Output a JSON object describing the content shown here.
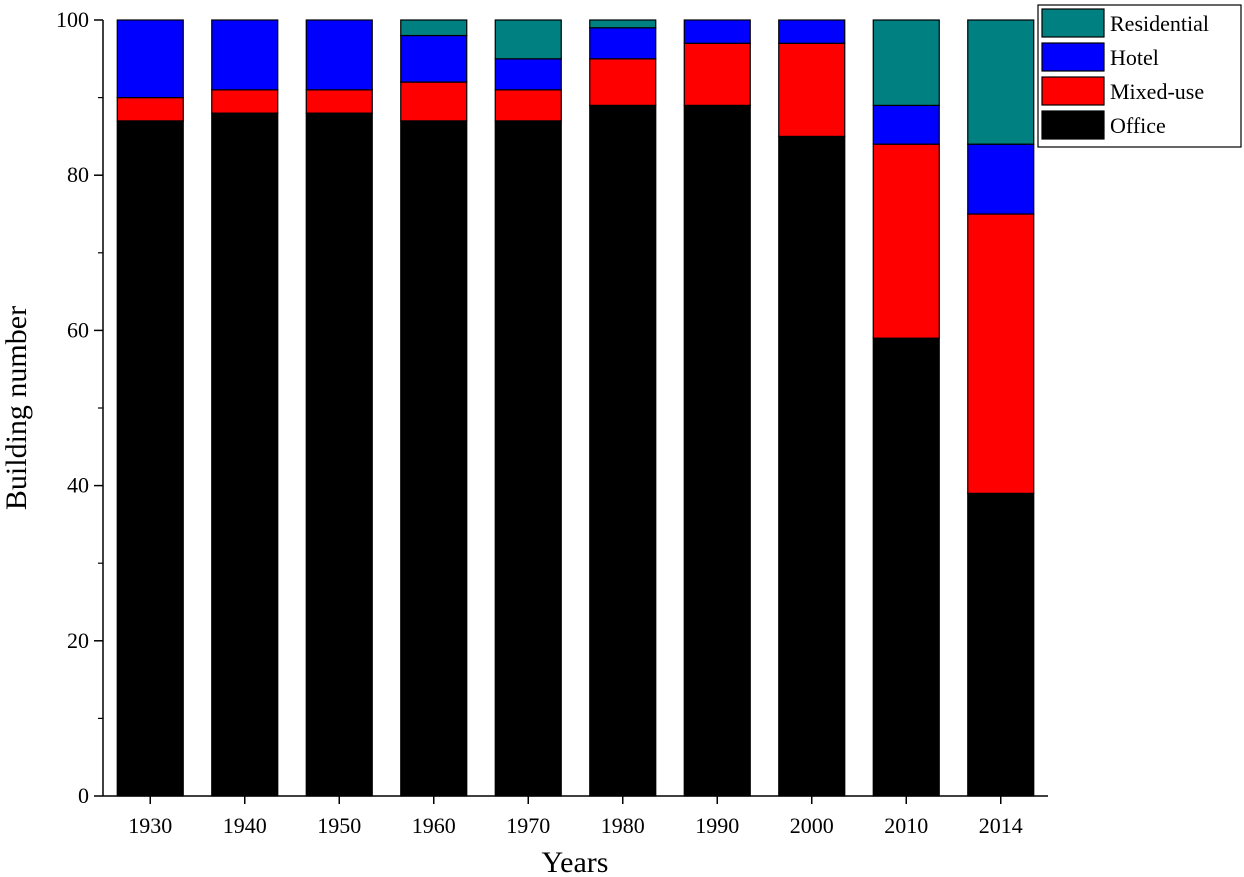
{
  "chart_data": {
    "type": "bar",
    "stacked": true,
    "categories": [
      "1930",
      "1940",
      "1950",
      "1960",
      "1970",
      "1980",
      "1990",
      "2000",
      "2010",
      "2014"
    ],
    "series": [
      {
        "name": "Office",
        "color": "#000000",
        "values": [
          87,
          88,
          88,
          87,
          87,
          89,
          89,
          85,
          59,
          39
        ]
      },
      {
        "name": "Mixed-use",
        "color": "#ff0000",
        "values": [
          3,
          3,
          3,
          5,
          4,
          6,
          8,
          12,
          25,
          36
        ]
      },
      {
        "name": "Hotel",
        "color": "#0000ff",
        "values": [
          10,
          9,
          9,
          6,
          4,
          4,
          3,
          3,
          5,
          9
        ]
      },
      {
        "name": "Residential",
        "color": "#008080",
        "values": [
          0,
          0,
          0,
          2,
          5,
          1,
          0,
          0,
          11,
          16
        ]
      }
    ],
    "legend_order": [
      "Residential",
      "Hotel",
      "Mixed-use",
      "Office"
    ],
    "xlabel": "Years",
    "ylabel": "Building number",
    "ylim": [
      0,
      100
    ],
    "yticks": [
      0,
      20,
      40,
      60,
      80,
      100
    ],
    "grid": false,
    "legend_position": "top-right"
  }
}
